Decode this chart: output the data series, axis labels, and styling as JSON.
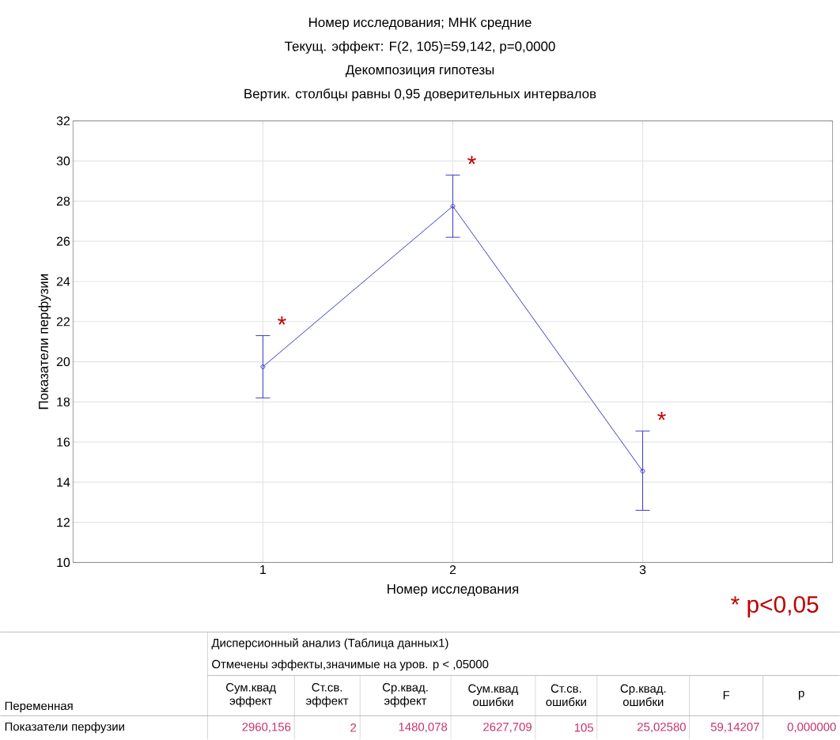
{
  "chart_data": {
    "type": "line",
    "title": "Номер исследования; МНК средние",
    "subtitle": "Текущ. эффект: F(2, 105)=59,142, p=0,0000",
    "xlabel": "Номер исследования",
    "ylabel": "Показатели перфузии",
    "categories": [
      "1",
      "2",
      "3"
    ],
    "series": [
      {
        "color": "#3b3bc4",
        "values": [
          19.75,
          27.75,
          14.55
        ],
        "errors": [
          [
            18.2,
            21.3
          ],
          [
            26.2,
            29.3
          ],
          [
            12.6,
            16.55
          ]
        ]
      }
    ],
    "ylim": [
      10,
      32
    ],
    "yticks": [
      10,
      12,
      14,
      16,
      18,
      20,
      22,
      24,
      26,
      28,
      30,
      32
    ],
    "grid": true,
    "marker": "circle",
    "line_style": "solid",
    "annotations": [
      "Декомпозиция гипотезы",
      "Вертик. столбцы равны 0,95 доверительных интервалов",
      {
        "text": "*",
        "x": "1",
        "y": 21.3
      },
      {
        "text": "*",
        "x": "2",
        "y": 29.3
      },
      {
        "text": "*",
        "x": "3",
        "y": 16.55
      },
      "* p<0,05",
      "Дисперсионный анализ (Таблица данных1)",
      "Отмечены эффекты,значимые на уров. p < ,05000",
      "Переменная",
      "Сум.квад эффект",
      "Ст.св. эффект",
      "Ср.квад. эффект",
      "Сум.квад ошибки",
      "Ст.св. ошибки",
      "Ср.квад. ошибки",
      "F",
      "p",
      "Показатели перфузии",
      "2960,156",
      "2",
      "1480,078",
      "2627,709",
      "105",
      "25,02580",
      "59,14207",
      "0,000000"
    ]
  }
}
